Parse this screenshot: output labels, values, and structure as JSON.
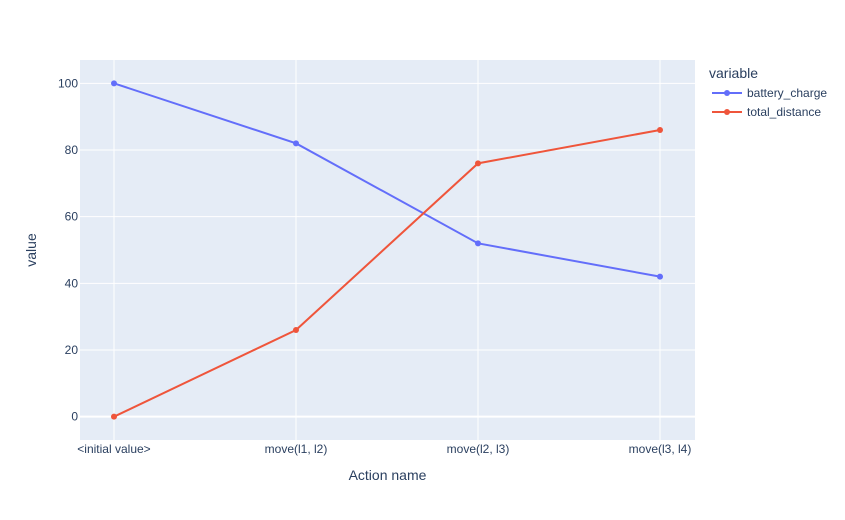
{
  "chart_data": {
    "type": "line",
    "categories": [
      "<initial value>",
      "move(l1, l2)",
      "move(l2, l3)",
      "move(l3, l4)"
    ],
    "series": [
      {
        "name": "battery_charge",
        "values": [
          100,
          82,
          52,
          42
        ],
        "color": "#636efa"
      },
      {
        "name": "total_distance",
        "values": [
          0,
          26,
          76,
          86
        ],
        "color": "#ef553b"
      }
    ],
    "xlabel": "Action name",
    "ylabel": "value",
    "ylim": [
      -7,
      107
    ],
    "yticks": [
      0,
      20,
      40,
      60,
      80,
      100
    ],
    "legend_title": "variable",
    "legend_position": "top-right",
    "grid": true,
    "plot_background": "#e5ecf6"
  }
}
